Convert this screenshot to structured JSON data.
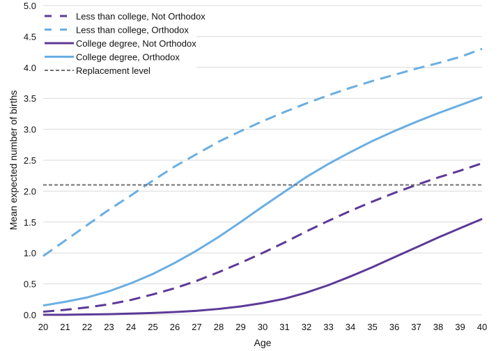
{
  "chart_data": {
    "type": "line",
    "title": "",
    "xlabel": "Age",
    "ylabel": "Mean expected number of births",
    "xlim": [
      20,
      40
    ],
    "ylim": [
      0,
      5
    ],
    "x": [
      20,
      21,
      22,
      23,
      24,
      25,
      26,
      27,
      28,
      29,
      30,
      31,
      32,
      33,
      34,
      35,
      36,
      37,
      38,
      39,
      40
    ],
    "yticks": [
      "0.0",
      "0.5",
      "1.0",
      "1.5",
      "2.0",
      "2.5",
      "3.0",
      "3.5",
      "4.0",
      "4.5",
      "5.0"
    ],
    "xticks": [
      "20",
      "21",
      "22",
      "23",
      "24",
      "25",
      "26",
      "27",
      "28",
      "29",
      "30",
      "31",
      "32",
      "33",
      "34",
      "35",
      "36",
      "37",
      "38",
      "39",
      "40"
    ],
    "grid": "horizontal",
    "legend_position": "top-left",
    "series": [
      {
        "name": "Less than college, Not Orthodox",
        "color": "#5c3a97",
        "style": "dashed",
        "values": [
          0.05,
          0.08,
          0.12,
          0.17,
          0.24,
          0.33,
          0.43,
          0.55,
          0.69,
          0.84,
          1.0,
          1.17,
          1.35,
          1.52,
          1.68,
          1.83,
          1.97,
          2.1,
          2.22,
          2.33,
          2.45
        ]
      },
      {
        "name": "Less than college, Orthodox",
        "color": "#6aaee2",
        "style": "dashed",
        "values": [
          0.95,
          1.2,
          1.45,
          1.7,
          1.93,
          2.17,
          2.4,
          2.6,
          2.8,
          2.97,
          3.13,
          3.28,
          3.42,
          3.55,
          3.67,
          3.78,
          3.88,
          3.98,
          4.07,
          4.17,
          4.3
        ]
      },
      {
        "name": "College degree, Not Orthodox",
        "color": "#5c3a97",
        "style": "solid",
        "values": [
          0.0,
          0.0,
          0.005,
          0.01,
          0.02,
          0.03,
          0.045,
          0.065,
          0.095,
          0.135,
          0.19,
          0.26,
          0.36,
          0.48,
          0.62,
          0.77,
          0.93,
          1.09,
          1.25,
          1.4,
          1.55
        ]
      },
      {
        "name": "College degree, Orthodox",
        "color": "#6aaee2",
        "style": "solid",
        "values": [
          0.15,
          0.21,
          0.28,
          0.38,
          0.51,
          0.66,
          0.84,
          1.04,
          1.26,
          1.5,
          1.75,
          1.99,
          2.23,
          2.44,
          2.63,
          2.81,
          2.97,
          3.12,
          3.26,
          3.39,
          3.52
        ]
      },
      {
        "name": "Replacement level",
        "color": "#707070",
        "style": "dotted-dash",
        "values": [
          2.1,
          2.1,
          2.1,
          2.1,
          2.1,
          2.1,
          2.1,
          2.1,
          2.1,
          2.1,
          2.1,
          2.1,
          2.1,
          2.1,
          2.1,
          2.1,
          2.1,
          2.1,
          2.1,
          2.1,
          2.1
        ]
      }
    ]
  }
}
